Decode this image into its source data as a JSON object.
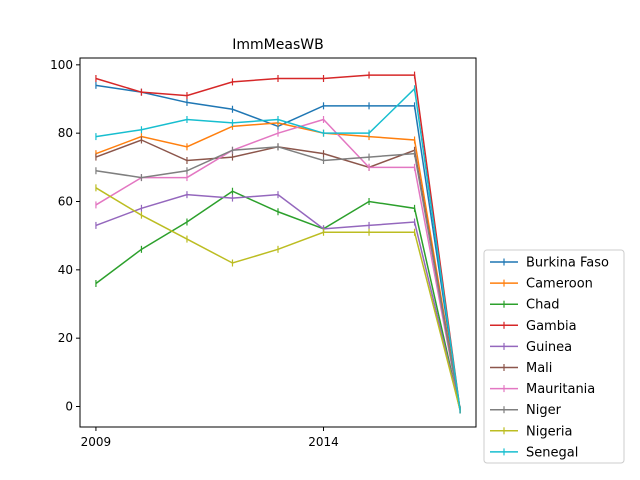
{
  "chart_data": {
    "type": "line",
    "title": "ImmMeasWB",
    "xlabel": "",
    "ylabel": "",
    "x": [
      2009,
      2010,
      2011,
      2012,
      2013,
      2014,
      2015,
      2016,
      2017
    ],
    "x_tick_values": [
      2009,
      2014
    ],
    "x_tick_labels": [
      "2009",
      "2014"
    ],
    "xlim": [
      2008.65,
      2017.35
    ],
    "ylim": [
      -6,
      102
    ],
    "y_ticks": [
      0,
      20,
      40,
      60,
      80,
      100
    ],
    "grid": false,
    "legend_position": "lower-right-outside",
    "series": [
      {
        "name": "Burkina Faso",
        "color": "#1f77b4",
        "values": [
          94,
          92,
          89,
          87,
          82,
          88,
          88,
          88,
          -1
        ]
      },
      {
        "name": "Cameroon",
        "color": "#ff7f0e",
        "values": [
          74,
          79,
          76,
          82,
          83,
          80,
          79,
          78,
          -1
        ]
      },
      {
        "name": "Chad",
        "color": "#2ca02c",
        "values": [
          36,
          46,
          54,
          63,
          57,
          52,
          60,
          58,
          -1
        ]
      },
      {
        "name": "Gambia",
        "color": "#d62728",
        "values": [
          96,
          92,
          91,
          95,
          96,
          96,
          97,
          97,
          -1
        ]
      },
      {
        "name": "Guinea",
        "color": "#9467bd",
        "values": [
          53,
          58,
          62,
          61,
          62,
          52,
          53,
          54,
          -1
        ]
      },
      {
        "name": "Mali",
        "color": "#8c564b",
        "values": [
          73,
          78,
          72,
          73,
          76,
          74,
          70,
          75,
          -1
        ]
      },
      {
        "name": "Mauritania",
        "color": "#e377c2",
        "values": [
          59,
          67,
          67,
          75,
          80,
          84,
          70,
          70,
          -1
        ]
      },
      {
        "name": "Niger",
        "color": "#7f7f7f",
        "values": [
          69,
          67,
          69,
          75,
          76,
          72,
          73,
          74,
          -1
        ]
      },
      {
        "name": "Nigeria",
        "color": "#bcbd22",
        "values": [
          64,
          56,
          49,
          42,
          46,
          51,
          51,
          51,
          -1
        ]
      },
      {
        "name": "Senegal",
        "color": "#17becf",
        "values": [
          79,
          81,
          84,
          83,
          84,
          80,
          80,
          93,
          -1
        ]
      }
    ]
  }
}
